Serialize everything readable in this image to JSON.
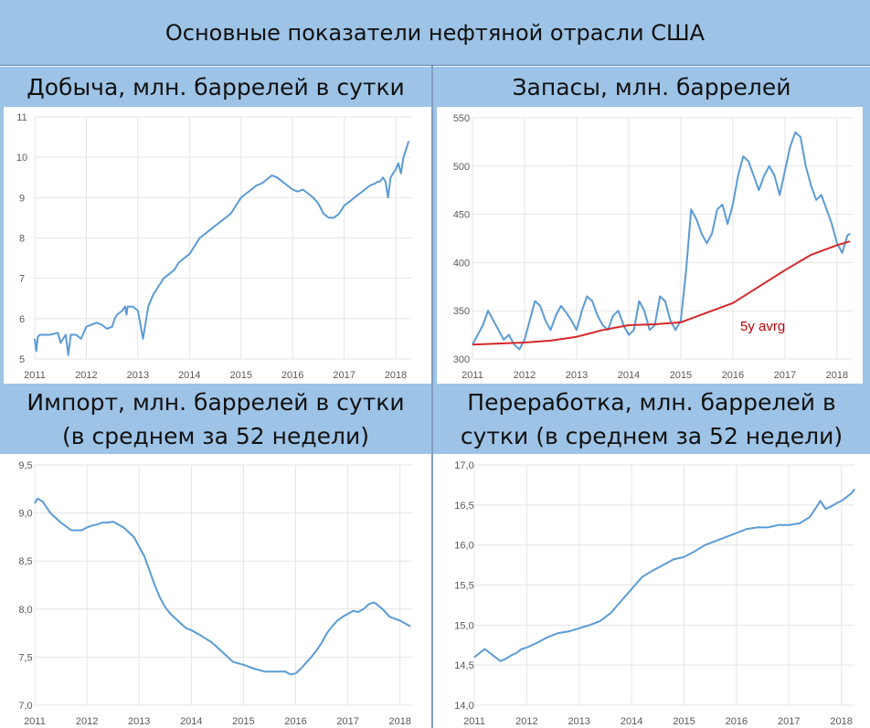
{
  "title": "Основные показатели нефтяной отрасли США",
  "panels": {
    "production": {
      "title": "Добыча, млн. баррелей в сутки"
    },
    "stocks": {
      "title": "Запасы, млн. баррелей"
    },
    "imports": {
      "title_line1": "Импорт, млн. баррелей в сутки",
      "title_line2": "(в среднем за 52 недели)"
    },
    "refining": {
      "title_line1": "Переработка, млн. баррелей в",
      "title_line2": "сутки (в среднем за 52 недели)"
    }
  },
  "colors": {
    "header_bg": "#9dc3e6",
    "series": "#5b9bd5",
    "avg": "#d62728",
    "annotation": "#c00000"
  },
  "chart_data": [
    {
      "id": "production",
      "type": "line",
      "title": "Добыча, млн. баррелей в сутки",
      "xticks": [
        "2011",
        "2012",
        "2013",
        "2014",
        "2015",
        "2016",
        "2017",
        "2018"
      ],
      "yticks": [
        "5",
        "6",
        "7",
        "8",
        "9",
        "10",
        "11"
      ],
      "ylim": [
        5,
        11
      ],
      "xlim": [
        2011.0,
        2018.3
      ],
      "grid": true,
      "series": [
        {
          "x": [
            2011.0,
            2011.03,
            2011.06,
            2011.1,
            2011.3,
            2011.45,
            2011.5,
            2011.6,
            2011.65,
            2011.7,
            2011.8,
            2011.9,
            2012.0,
            2012.2,
            2012.3,
            2012.4,
            2012.5,
            2012.55,
            2012.6,
            2012.7,
            2012.75,
            2012.78,
            2012.8,
            2012.9,
            2013.0,
            2013.1,
            2013.2,
            2013.3,
            2013.4,
            2013.5,
            2013.6,
            2013.7,
            2013.75,
            2013.8,
            2013.9,
            2014.0,
            2014.1,
            2014.2,
            2014.3,
            2014.4,
            2014.5,
            2014.6,
            2014.7,
            2014.8,
            2014.9,
            2015.0,
            2015.1,
            2015.2,
            2015.3,
            2015.4,
            2015.5,
            2015.6,
            2015.7,
            2015.8,
            2015.9,
            2016.0,
            2016.1,
            2016.2,
            2016.3,
            2016.4,
            2016.5,
            2016.6,
            2016.7,
            2016.8,
            2016.9,
            2017.0,
            2017.1,
            2017.2,
            2017.3,
            2017.4,
            2017.5,
            2017.6,
            2017.65,
            2017.7,
            2017.75,
            2017.8,
            2017.85,
            2017.9,
            2017.95,
            2018.0,
            2018.05,
            2018.1,
            2018.15,
            2018.2,
            2018.25
          ],
          "y": [
            5.5,
            5.2,
            5.55,
            5.6,
            5.6,
            5.65,
            5.4,
            5.6,
            5.1,
            5.6,
            5.6,
            5.5,
            5.8,
            5.9,
            5.85,
            5.75,
            5.8,
            6.0,
            6.1,
            6.2,
            6.3,
            6.1,
            6.3,
            6.3,
            6.2,
            5.5,
            6.3,
            6.6,
            6.8,
            7.0,
            7.1,
            7.2,
            7.3,
            7.4,
            7.5,
            7.6,
            7.8,
            8.0,
            8.1,
            8.2,
            8.3,
            8.4,
            8.5,
            8.6,
            8.8,
            9.0,
            9.1,
            9.2,
            9.3,
            9.35,
            9.45,
            9.55,
            9.5,
            9.4,
            9.3,
            9.2,
            9.15,
            9.2,
            9.1,
            9.0,
            8.85,
            8.6,
            8.5,
            8.5,
            8.6,
            8.8,
            8.9,
            9.0,
            9.1,
            9.2,
            9.3,
            9.35,
            9.4,
            9.4,
            9.5,
            9.4,
            9.0,
            9.5,
            9.6,
            9.7,
            9.85,
            9.6,
            10.0,
            10.2,
            10.4
          ]
        }
      ]
    },
    {
      "id": "stocks",
      "type": "line",
      "title": "Запасы, млн. баррелей",
      "xticks": [
        "2011",
        "2012",
        "2013",
        "2014",
        "2015",
        "2016",
        "2017",
        "2018"
      ],
      "yticks": [
        "300",
        "350",
        "400",
        "450",
        "500",
        "550"
      ],
      "ylim": [
        300,
        550
      ],
      "xlim": [
        2011.0,
        2018.3
      ],
      "grid": true,
      "annotations": [
        {
          "text": "5y avrg"
        }
      ],
      "series": [
        {
          "x": [
            2011.0,
            2011.1,
            2011.2,
            2011.3,
            2011.4,
            2011.5,
            2011.6,
            2011.7,
            2011.8,
            2011.9,
            2012.0,
            2012.1,
            2012.2,
            2012.3,
            2012.4,
            2012.5,
            2012.6,
            2012.7,
            2012.8,
            2012.9,
            2013.0,
            2013.1,
            2013.2,
            2013.3,
            2013.4,
            2013.5,
            2013.6,
            2013.7,
            2013.8,
            2013.9,
            2014.0,
            2014.1,
            2014.2,
            2014.3,
            2014.4,
            2014.5,
            2014.6,
            2014.7,
            2014.8,
            2014.9,
            2015.0,
            2015.1,
            2015.2,
            2015.3,
            2015.4,
            2015.5,
            2015.6,
            2015.7,
            2015.8,
            2015.9,
            2016.0,
            2016.1,
            2016.2,
            2016.3,
            2016.4,
            2016.5,
            2016.6,
            2016.7,
            2016.8,
            2016.9,
            2017.0,
            2017.1,
            2017.2,
            2017.3,
            2017.4,
            2017.5,
            2017.6,
            2017.7,
            2017.8,
            2017.9,
            2018.0,
            2018.1,
            2018.2,
            2018.25
          ],
          "y": [
            315,
            325,
            335,
            350,
            340,
            330,
            320,
            325,
            315,
            310,
            320,
            340,
            360,
            355,
            340,
            330,
            345,
            355,
            348,
            340,
            330,
            350,
            365,
            360,
            345,
            335,
            330,
            345,
            350,
            335,
            325,
            330,
            360,
            350,
            330,
            335,
            365,
            360,
            340,
            330,
            340,
            390,
            455,
            445,
            430,
            420,
            430,
            455,
            460,
            440,
            460,
            490,
            510,
            505,
            490,
            475,
            490,
            500,
            490,
            470,
            495,
            520,
            535,
            530,
            500,
            480,
            465,
            470,
            455,
            440,
            420,
            410,
            428,
            430
          ]
        },
        {
          "x": [
            2011.0,
            2011.5,
            2012.0,
            2012.5,
            2013.0,
            2013.5,
            2014.0,
            2014.5,
            2015.0,
            2015.5,
            2016.0,
            2016.5,
            2017.0,
            2017.5,
            2018.0,
            2018.25
          ],
          "y": [
            315,
            316,
            317,
            319,
            323,
            330,
            335,
            336,
            338,
            348,
            358,
            375,
            392,
            408,
            418,
            422
          ]
        }
      ]
    },
    {
      "id": "imports",
      "type": "line",
      "title": "Импорт, млн. баррелей в сутки (в среднем за 52 недели)",
      "xticks": [
        "2011",
        "2012",
        "2013",
        "2014",
        "2015",
        "2016",
        "2017",
        "2018"
      ],
      "yticks": [
        "7,0",
        "7,5",
        "8,0",
        "8,5",
        "9,0",
        "9,5"
      ],
      "ylim": [
        7.0,
        9.5
      ],
      "xlim": [
        2011.0,
        2018.25
      ],
      "grid": true,
      "series": [
        {
          "x": [
            2011.0,
            2011.05,
            2011.15,
            2011.3,
            2011.5,
            2011.7,
            2011.9,
            2012.0,
            2012.1,
            2012.2,
            2012.3,
            2012.4,
            2012.5,
            2012.6,
            2012.7,
            2012.8,
            2012.9,
            2013.0,
            2013.1,
            2013.2,
            2013.3,
            2013.4,
            2013.5,
            2013.6,
            2013.7,
            2013.8,
            2013.9,
            2014.0,
            2014.2,
            2014.4,
            2014.6,
            2014.8,
            2015.0,
            2015.2,
            2015.4,
            2015.6,
            2015.8,
            2015.9,
            2016.0,
            2016.1,
            2016.2,
            2016.3,
            2016.4,
            2016.5,
            2016.6,
            2016.7,
            2016.8,
            2016.9,
            2017.0,
            2017.1,
            2017.2,
            2017.3,
            2017.4,
            2017.5,
            2017.6,
            2017.7,
            2017.8,
            2017.9,
            2018.0,
            2018.1,
            2018.2
          ],
          "y": [
            9.1,
            9.15,
            9.12,
            9.0,
            8.9,
            8.82,
            8.82,
            8.85,
            8.87,
            8.88,
            8.9,
            8.9,
            8.91,
            8.88,
            8.85,
            8.8,
            8.75,
            8.65,
            8.55,
            8.4,
            8.25,
            8.12,
            8.02,
            7.95,
            7.9,
            7.85,
            7.8,
            7.78,
            7.72,
            7.65,
            7.55,
            7.45,
            7.42,
            7.38,
            7.35,
            7.35,
            7.35,
            7.32,
            7.33,
            7.38,
            7.44,
            7.5,
            7.57,
            7.65,
            7.75,
            7.82,
            7.88,
            7.92,
            7.95,
            7.98,
            7.97,
            8.0,
            8.05,
            8.07,
            8.03,
            7.98,
            7.92,
            7.9,
            7.88,
            7.85,
            7.82
          ]
        }
      ]
    },
    {
      "id": "refining",
      "type": "line",
      "title": "Переработка, млн. баррелей в сутки (в среднем за 52 недели)",
      "xticks": [
        "2011",
        "2012",
        "2013",
        "2014",
        "2015",
        "2016",
        "2017",
        "2018"
      ],
      "yticks": [
        "14,0",
        "14,5",
        "15,0",
        "15,5",
        "16,0",
        "16,5",
        "17,0"
      ],
      "ylim": [
        14.0,
        17.0
      ],
      "xlim": [
        2011.0,
        2018.25
      ],
      "grid": true,
      "series": [
        {
          "x": [
            2011.0,
            2011.1,
            2011.2,
            2011.3,
            2011.4,
            2011.5,
            2011.6,
            2011.7,
            2011.8,
            2011.9,
            2012.0,
            2012.2,
            2012.4,
            2012.6,
            2012.8,
            2013.0,
            2013.2,
            2013.4,
            2013.6,
            2013.8,
            2014.0,
            2014.2,
            2014.4,
            2014.6,
            2014.8,
            2015.0,
            2015.2,
            2015.4,
            2015.6,
            2015.8,
            2016.0,
            2016.2,
            2016.4,
            2016.6,
            2016.8,
            2017.0,
            2017.2,
            2017.4,
            2017.5,
            2017.6,
            2017.7,
            2017.8,
            2017.9,
            2018.0,
            2018.1,
            2018.2,
            2018.25
          ],
          "y": [
            14.6,
            14.65,
            14.7,
            14.65,
            14.6,
            14.55,
            14.58,
            14.62,
            14.65,
            14.7,
            14.72,
            14.78,
            14.85,
            14.9,
            14.92,
            14.96,
            15.0,
            15.05,
            15.15,
            15.3,
            15.45,
            15.6,
            15.68,
            15.75,
            15.82,
            15.85,
            15.92,
            16.0,
            16.05,
            16.1,
            16.15,
            16.2,
            16.22,
            16.22,
            16.25,
            16.25,
            16.27,
            16.35,
            16.45,
            16.55,
            16.45,
            16.48,
            16.52,
            16.55,
            16.6,
            16.65,
            16.7
          ]
        }
      ]
    }
  ]
}
